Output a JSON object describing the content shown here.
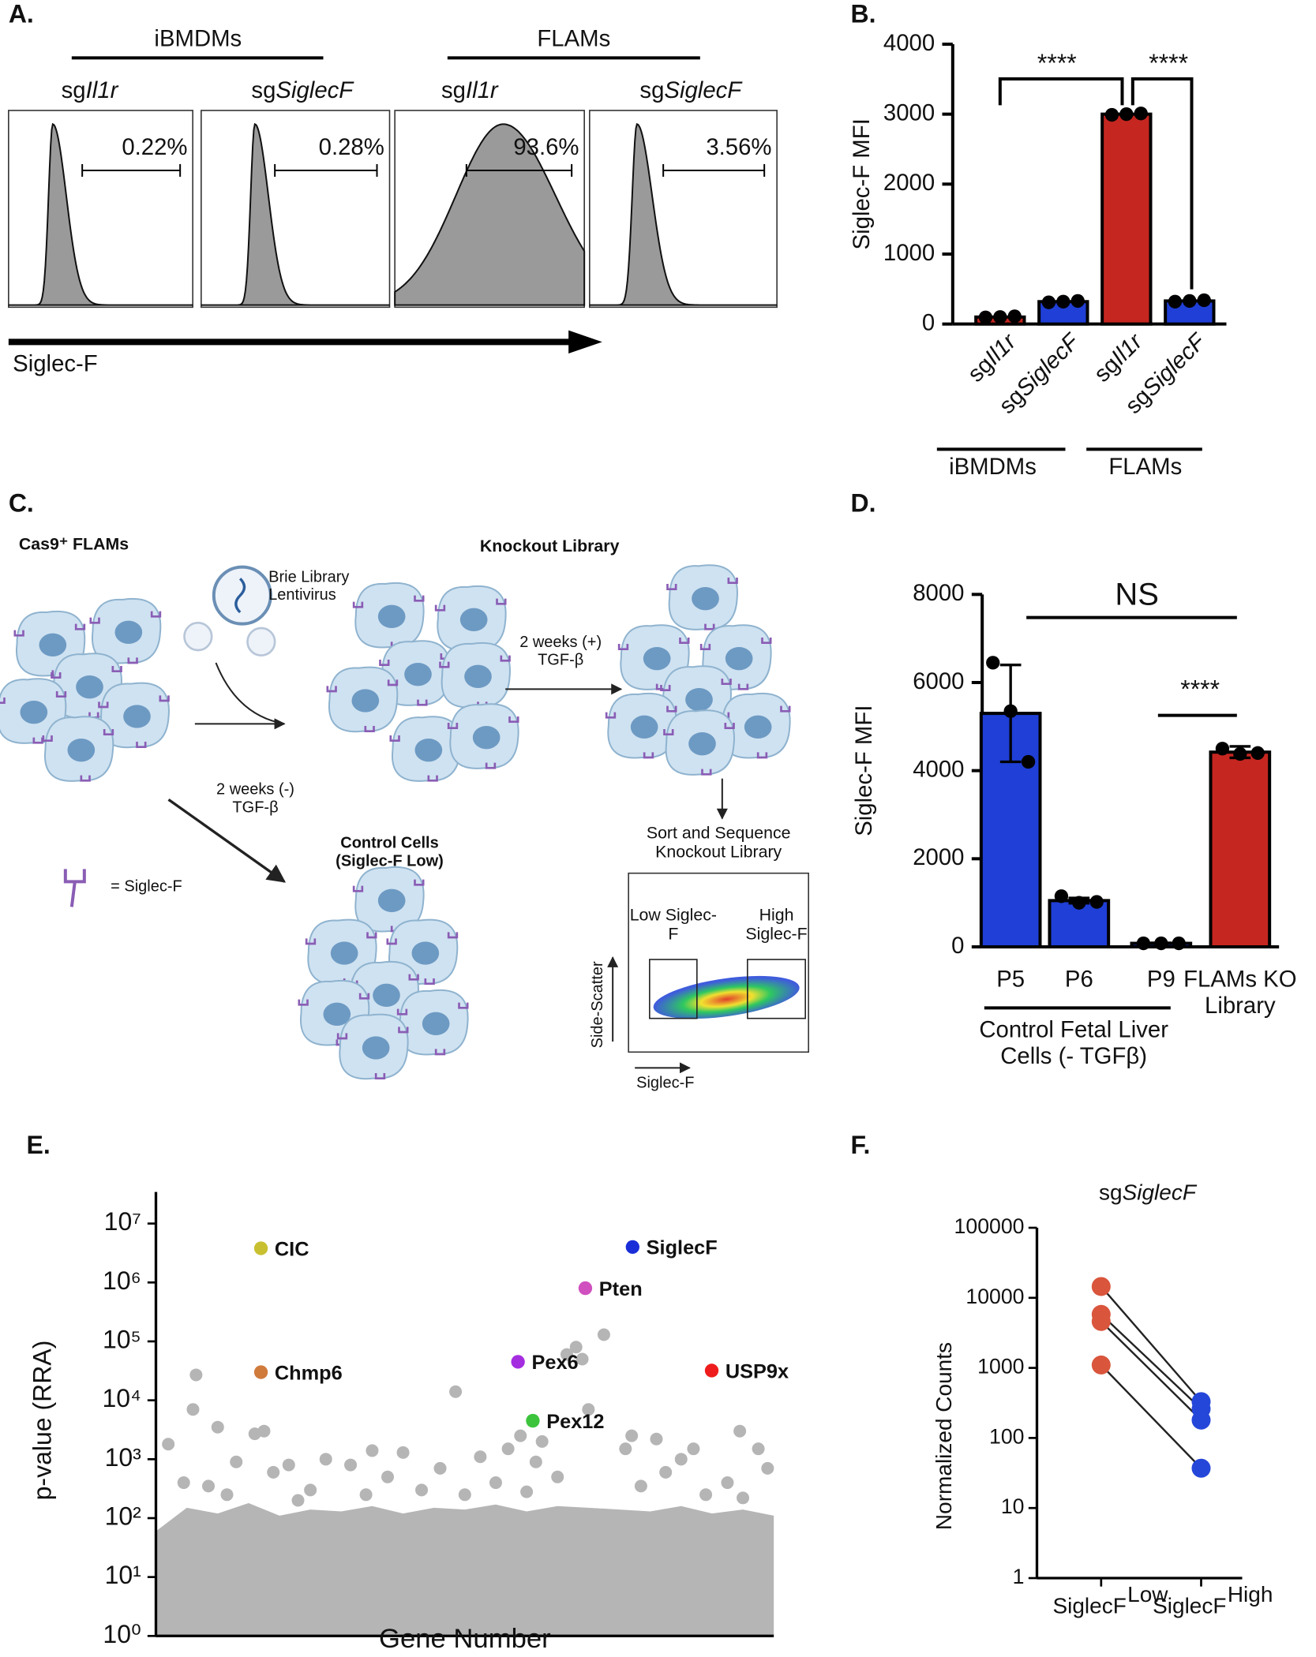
{
  "panel_labels": [
    "A.",
    "B.",
    "C.",
    "D.",
    "E.",
    "F."
  ],
  "panel_a": {
    "groups": [
      "iBMDMs",
      "FLAMs"
    ],
    "samples": [
      "sgIl1r",
      "sgSiglecF",
      "sgIl1r",
      "sgSiglecF"
    ],
    "gates": [
      "0.22%",
      "0.28%",
      "93.6%",
      "3.56%"
    ],
    "axis_label": "Siglec-F"
  },
  "panel_c": {
    "cas9": "Cas9⁺ FLAMs",
    "brie": "Brie Library Lentivirus",
    "ko_library": "Knockout Library",
    "plus_tgf": "2 weeks (+) TGF-β",
    "minus_tgf": "2 weeks (-) TGF-β",
    "legend": "= Siglec-F",
    "control": "Control Cells (Siglec-F Low)",
    "sort": "Sort and Sequence Knockout Library",
    "low": "Low Siglec-F",
    "high": "High Siglec-F",
    "ssc": "Side-Scatter",
    "sigf": "Siglec-F"
  },
  "chart_data": [
    {
      "type": "bar",
      "ylabel": "Siglec-F MFI",
      "categories": [
        "sgIl1r",
        "sgSiglecF",
        "sgIl1r",
        "sgSiglecF"
      ],
      "values": [
        100,
        320,
        3000,
        330
      ],
      "colors": [
        "#c62620",
        "#1f3fd6",
        "#c62620",
        "#1f3fd6"
      ],
      "points": [
        [
          95,
          100,
          110
        ],
        [
          310,
          320,
          330
        ],
        [
          2990,
          3000,
          3010
        ],
        [
          320,
          330,
          340
        ]
      ],
      "ylim": [
        0,
        4000
      ],
      "yticks": [
        0,
        1000,
        2000,
        3000,
        4000
      ],
      "annotations": [
        "****",
        "****"
      ],
      "groups": [
        "iBMDMs",
        "FLAMs"
      ]
    },
    {
      "type": "bar",
      "ylabel": "Siglec-F MFI",
      "categories": [
        "P5",
        "P6",
        "P9",
        "FLAMs KO Library"
      ],
      "values": [
        5300,
        1050,
        80,
        4420
      ],
      "errors": [
        1100,
        60,
        10,
        130
      ],
      "colors": [
        "#1f3fd6",
        "#1f3fd6",
        "#1f3fd6",
        "#c62620"
      ],
      "points": [
        [
          6450,
          5350,
          4200
        ],
        [
          1150,
          1000,
          1020
        ],
        [
          80,
          80,
          80
        ],
        [
          4500,
          4380,
          4400
        ]
      ],
      "ylim": [
        0,
        8000
      ],
      "yticks": [
        0,
        2000,
        4000,
        6000,
        8000
      ],
      "annotations": [
        "NS",
        "****"
      ],
      "groups": [
        "Control Fetal Liver Cells (- TGFβ)"
      ]
    },
    {
      "type": "scatter",
      "xlabel": "Gene Number",
      "ylabel": "p-value (RRA)",
      "log_y": true,
      "xlim": [
        0,
        20000
      ],
      "ylim": [
        1,
        10000000
      ],
      "yticks": [
        {
          "value": 1,
          "label": "10⁰"
        },
        {
          "value": 10,
          "label": "10¹"
        },
        {
          "value": 100,
          "label": "10²"
        },
        {
          "value": 1000,
          "label": "10³"
        },
        {
          "value": 10000,
          "label": "10⁴"
        },
        {
          "value": 100000,
          "label": "10⁵"
        },
        {
          "value": 1000000,
          "label": "10⁶"
        },
        {
          "value": 10000000,
          "label": "10⁷"
        }
      ],
      "series": [
        {
          "color": "#b5b5b5",
          "x": [
            1300,
            3200,
            3500,
            1200,
            2000,
            5500,
            7000,
            9700,
            11400,
            11800,
            12500,
            13300,
            13600,
            13800,
            14500,
            15200,
            15400,
            16200,
            17400,
            18900,
            19500,
            17000,
            8000,
            10500,
            6300,
            4300,
            2600,
            900,
            400,
            14000,
            12300,
            9200,
            16500,
            19800,
            3800,
            7500,
            11000,
            13000,
            18500,
            5000,
            1700,
            15700,
            10000,
            6800,
            8600,
            12000,
            17800,
            19000,
            2300,
            4600
          ],
          "values": [
            27000,
            2700,
            3000,
            7000,
            3500,
            1000,
            1400,
            14000,
            1500,
            2500,
            2000,
            60000,
            80000,
            50000,
            130000,
            1500,
            2500,
            2200,
            1500,
            3000,
            1500,
            1000,
            1300,
            1100,
            800,
            800,
            900,
            400,
            1800,
            7000,
            900,
            700,
            600,
            700,
            600,
            500,
            400,
            500,
            400,
            300,
            350,
            350,
            250,
            250,
            300,
            280,
            250,
            220,
            250,
            200
          ]
        },
        {
          "type": "area",
          "color": "#b5b5b5",
          "x": [
            0,
            1000,
            2000,
            3000,
            4000,
            5000,
            6000,
            7000,
            8000,
            9000,
            10000,
            11000,
            12000,
            13000,
            14000,
            15000,
            16000,
            17000,
            18000,
            19000,
            20000
          ],
          "values": [
            60,
            150,
            120,
            180,
            110,
            140,
            130,
            160,
            120,
            150,
            140,
            170,
            130,
            160,
            150,
            140,
            130,
            160,
            120,
            140,
            110
          ]
        },
        {
          "name": "CIC",
          "color": "#c8c030",
          "x": [
            3400
          ],
          "values": [
            3800000
          ]
        },
        {
          "name": "Chmp6",
          "color": "#d07a3c",
          "x": [
            3400
          ],
          "values": [
            30000
          ]
        },
        {
          "name": "Pex6",
          "color": "#a42de0",
          "x": [
            11720
          ],
          "values": [
            45000
          ]
        },
        {
          "name": "Pex12",
          "color": "#3cc43c",
          "x": [
            12200
          ],
          "values": [
            4500
          ]
        },
        {
          "name": "Pten",
          "color": "#d050c0",
          "x": [
            13900
          ],
          "values": [
            800000
          ]
        },
        {
          "name": "SiglecF",
          "color": "#1a2ed8",
          "x": [
            15430
          ],
          "values": [
            4000000
          ]
        },
        {
          "name": "USP9x",
          "color": "#ee1c1c",
          "x": [
            17990
          ],
          "values": [
            32000
          ]
        }
      ]
    },
    {
      "type": "line",
      "title": "sgSiglecF",
      "ylabel": "Normalized Counts",
      "log_y": true,
      "categories": [
        "SiglecF",
        "SiglecF"
      ],
      "superscripts": [
        "Low",
        "High"
      ],
      "point_colors": [
        "#d9553c",
        "#2547d9"
      ],
      "series": [
        {
          "values": [
            14500,
            330
          ]
        },
        {
          "values": [
            5800,
            260
          ]
        },
        {
          "values": [
            4600,
            180
          ]
        },
        {
          "values": [
            1100,
            37
          ]
        }
      ],
      "ylim": [
        1,
        100000
      ],
      "yticks": [
        1,
        10,
        100,
        1000,
        10000,
        100000
      ]
    }
  ]
}
